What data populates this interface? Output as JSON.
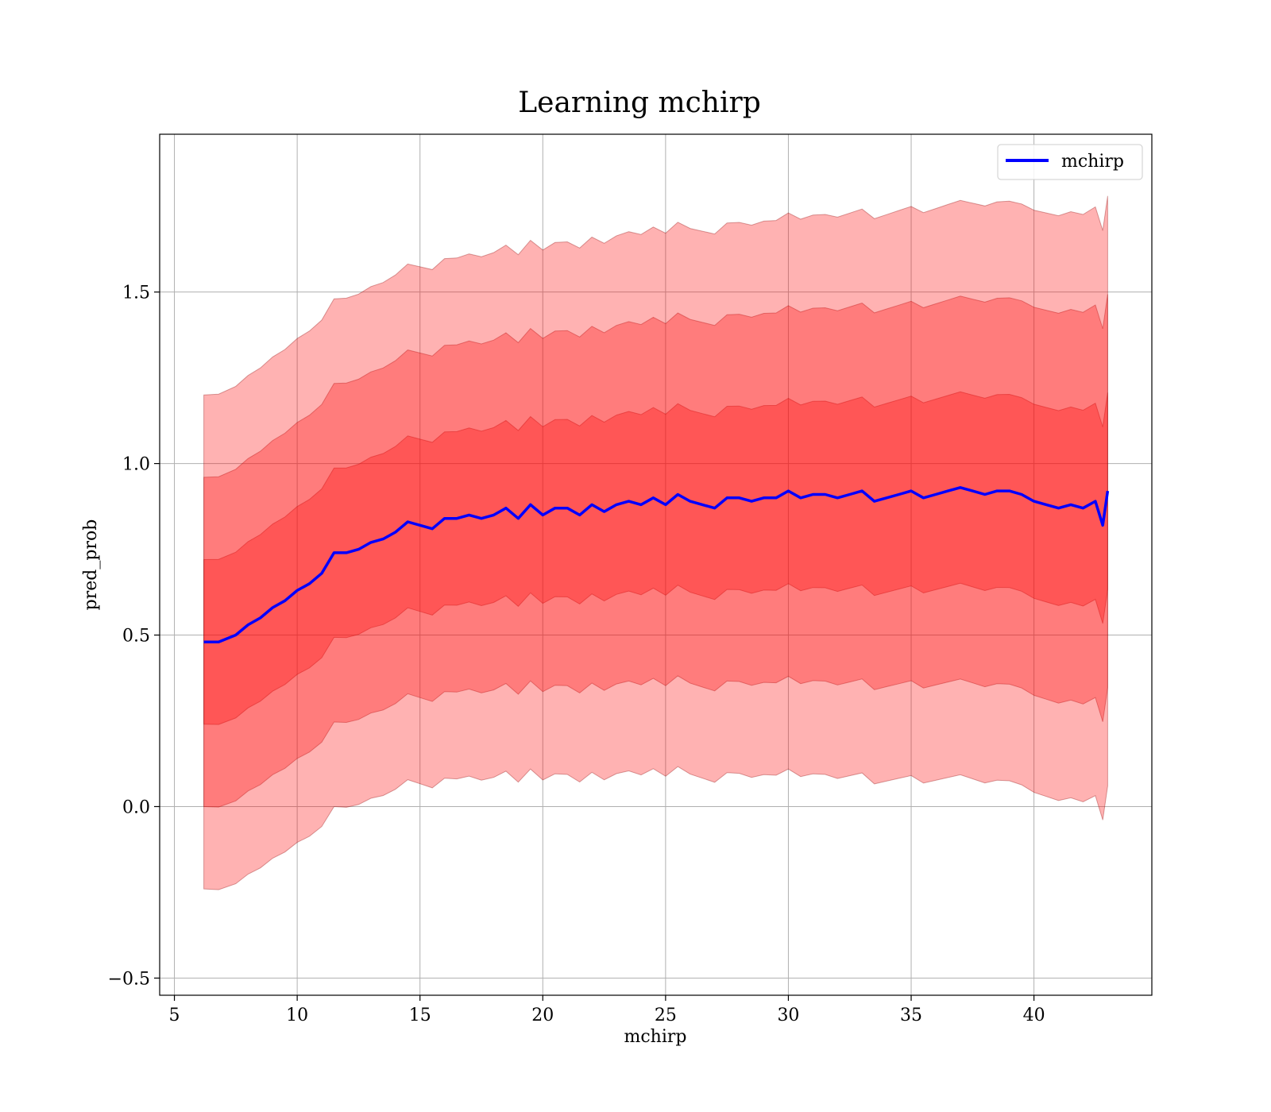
{
  "chart_data": {
    "type": "area",
    "title": "Learning mchirp",
    "xlabel": "mchirp",
    "ylabel": "pred_prob",
    "xlim": [
      4.4,
      44.8
    ],
    "ylim": [
      -0.55,
      1.96
    ],
    "xticks": [
      5,
      10,
      15,
      20,
      25,
      30,
      35,
      40
    ],
    "yticks": [
      -0.5,
      0.0,
      0.5,
      1.0,
      1.5
    ],
    "xtick_labels": [
      "5",
      "10",
      "15",
      "20",
      "25",
      "30",
      "35",
      "40"
    ],
    "ytick_labels": [
      "−0.5",
      "0.0",
      "0.5",
      "1.0",
      "1.5"
    ],
    "grid": true,
    "legend": {
      "position": "top-right",
      "entries": [
        "mchirp"
      ]
    },
    "colors": {
      "line": "#0000ff",
      "band": "#ff0000",
      "band_alpha": 0.3,
      "band_edge": "#8b0000"
    },
    "x": [
      6.2,
      6.8,
      7.5,
      8.0,
      8.5,
      9.0,
      9.5,
      10.0,
      10.5,
      11.0,
      11.5,
      12.0,
      12.5,
      13.0,
      13.5,
      14.0,
      14.5,
      15.0,
      15.5,
      16.0,
      16.5,
      17.0,
      17.5,
      18.0,
      18.5,
      19.0,
      19.5,
      20.0,
      20.5,
      21.0,
      21.5,
      22.0,
      22.5,
      23.0,
      23.5,
      24.0,
      24.5,
      25.0,
      25.5,
      26.0,
      26.5,
      27.0,
      27.5,
      28.0,
      28.5,
      29.0,
      29.5,
      30.0,
      30.5,
      31.0,
      31.5,
      32.0,
      32.5,
      33.0,
      33.5,
      34.0,
      34.5,
      35.0,
      35.5,
      36.0,
      36.5,
      37.0,
      37.5,
      38.0,
      38.5,
      39.0,
      39.5,
      40.0,
      40.5,
      41.0,
      41.5,
      42.0,
      42.5,
      42.8,
      43.0
    ],
    "series": [
      {
        "name": "mchirp",
        "values": [
          0.48,
          0.48,
          0.5,
          0.53,
          0.55,
          0.58,
          0.6,
          0.63,
          0.65,
          0.68,
          0.74,
          0.74,
          0.75,
          0.77,
          0.78,
          0.8,
          0.83,
          0.82,
          0.81,
          0.84,
          0.84,
          0.85,
          0.84,
          0.85,
          0.87,
          0.84,
          0.88,
          0.85,
          0.87,
          0.87,
          0.85,
          0.88,
          0.86,
          0.88,
          0.89,
          0.88,
          0.9,
          0.88,
          0.91,
          0.89,
          0.88,
          0.87,
          0.9,
          0.9,
          0.89,
          0.9,
          0.9,
          0.92,
          0.9,
          0.91,
          0.91,
          0.9,
          0.91,
          0.92,
          0.89,
          0.9,
          0.91,
          0.92,
          0.9,
          0.91,
          0.92,
          0.93,
          0.92,
          0.91,
          0.92,
          0.92,
          0.91,
          0.89,
          0.88,
          0.87,
          0.88,
          0.87,
          0.89,
          0.82,
          0.92
        ]
      }
    ]
  }
}
